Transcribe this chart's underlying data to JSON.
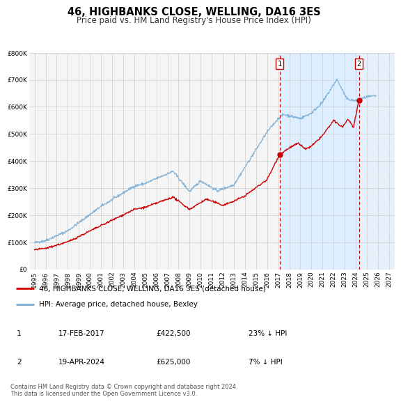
{
  "title": "46, HIGHBANKS CLOSE, WELLING, DA16 3ES",
  "subtitle": "Price paid vs. HM Land Registry's House Price Index (HPI)",
  "xlim": [
    1994.5,
    2027.5
  ],
  "ylim": [
    0,
    800000
  ],
  "yticks": [
    0,
    100000,
    200000,
    300000,
    400000,
    500000,
    600000,
    700000,
    800000
  ],
  "ytick_labels": [
    "£0",
    "£100K",
    "£200K",
    "£300K",
    "£400K",
    "£500K",
    "£600K",
    "£700K",
    "£800K"
  ],
  "xticks": [
    1995,
    1996,
    1997,
    1998,
    1999,
    2000,
    2001,
    2002,
    2003,
    2004,
    2005,
    2006,
    2007,
    2008,
    2009,
    2010,
    2011,
    2012,
    2013,
    2014,
    2015,
    2016,
    2017,
    2018,
    2019,
    2020,
    2021,
    2022,
    2023,
    2024,
    2025,
    2026,
    2027
  ],
  "sale1_x": 2017.12,
  "sale1_y": 422500,
  "sale2_x": 2024.3,
  "sale2_y": 625000,
  "red_line_color": "#cc0000",
  "blue_line_color": "#7aadd4",
  "shaded_region_color": "#ddeeff",
  "hatch_color": "#bbccdd",
  "marker_color": "#cc0000",
  "vline_color": "#cc0000",
  "grid_color": "#cccccc",
  "bg_color": "#f5f5f5",
  "legend1_label": "46, HIGHBANKS CLOSE, WELLING, DA16 3ES (detached house)",
  "legend2_label": "HPI: Average price, detached house, Bexley",
  "table_row1": [
    "1",
    "17-FEB-2017",
    "£422,500",
    "23% ↓ HPI"
  ],
  "table_row2": [
    "2",
    "19-APR-2024",
    "£625,000",
    "7% ↓ HPI"
  ],
  "footnote": "Contains HM Land Registry data © Crown copyright and database right 2024.\nThis data is licensed under the Open Government Licence v3.0.",
  "title_fontsize": 10.5,
  "subtitle_fontsize": 8.5,
  "tick_fontsize": 6.5,
  "legend_fontsize": 7.5,
  "table_fontsize": 7.5,
  "footnote_fontsize": 6.0
}
